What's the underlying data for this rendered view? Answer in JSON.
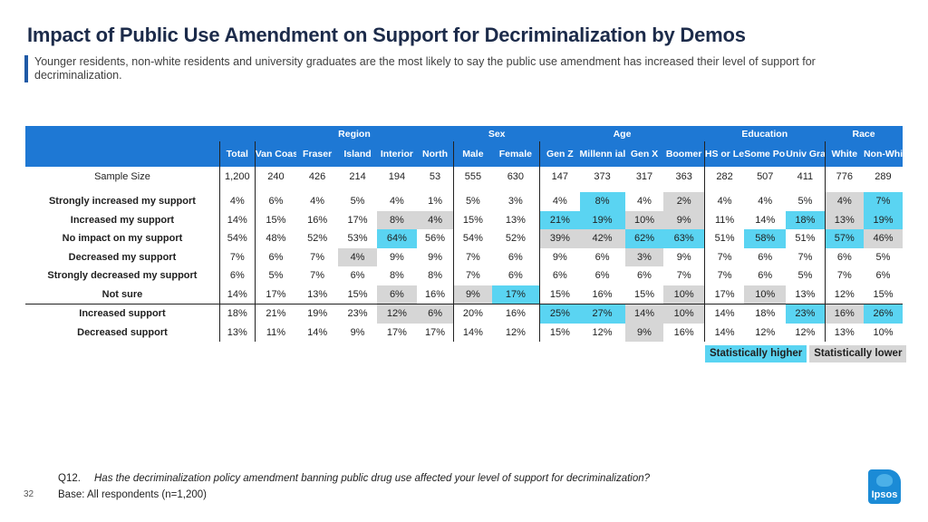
{
  "title": "Impact of Public Use Amendment on Support for Decriminalization by Demos",
  "subtitle": "Younger residents, non-white residents and university graduates are the most likely to say the public use amendment has increased their level of support for decriminalization.",
  "groups": {
    "region": "Region",
    "sex": "Sex",
    "age": "Age",
    "education": "Education",
    "race": "Race"
  },
  "columns": [
    "Total",
    "Van Coastal",
    "Fraser",
    "Island",
    "Interior",
    "North",
    "Male",
    "Female",
    "Gen Z",
    "Millenn ial",
    "Gen X",
    "Boomer",
    "HS or Less",
    "Some PostSec",
    "Univ Grad",
    "White",
    "Non-White"
  ],
  "sample": {
    "label": "Sample Size",
    "values": [
      "1,200",
      "240",
      "426",
      "214",
      "194",
      "53",
      "555",
      "630",
      "147",
      "373",
      "317",
      "363",
      "282",
      "507",
      "411",
      "776",
      "289"
    ]
  },
  "rows": [
    {
      "label": "Strongly increased my support",
      "values": [
        "4%",
        "6%",
        "4%",
        "5%",
        "4%",
        "1%",
        "5%",
        "3%",
        "4%",
        "8%",
        "4%",
        "2%",
        "4%",
        "4%",
        "5%",
        "4%",
        "7%"
      ],
      "sig": [
        "",
        "",
        "",
        "",
        "",
        "",
        "",
        "",
        "",
        "h",
        "",
        "l",
        "",
        "",
        "",
        "l",
        "h"
      ]
    },
    {
      "label": "Increased my support",
      "values": [
        "14%",
        "15%",
        "16%",
        "17%",
        "8%",
        "4%",
        "15%",
        "13%",
        "21%",
        "19%",
        "10%",
        "9%",
        "11%",
        "14%",
        "18%",
        "13%",
        "19%"
      ],
      "sig": [
        "",
        "",
        "",
        "",
        "l",
        "l",
        "",
        "",
        "h",
        "h",
        "l",
        "l",
        "",
        "",
        "h",
        "l",
        "h"
      ]
    },
    {
      "label": "No impact on my support",
      "values": [
        "54%",
        "48%",
        "52%",
        "53%",
        "64%",
        "56%",
        "54%",
        "52%",
        "39%",
        "42%",
        "62%",
        "63%",
        "51%",
        "58%",
        "51%",
        "57%",
        "46%"
      ],
      "sig": [
        "",
        "",
        "",
        "",
        "h",
        "",
        "",
        "",
        "l",
        "l",
        "h",
        "h",
        "",
        "h",
        "",
        "h",
        "l"
      ]
    },
    {
      "label": "Decreased my support",
      "values": [
        "7%",
        "6%",
        "7%",
        "4%",
        "9%",
        "9%",
        "7%",
        "6%",
        "9%",
        "6%",
        "3%",
        "9%",
        "7%",
        "6%",
        "7%",
        "6%",
        "5%"
      ],
      "sig": [
        "",
        "",
        "",
        "l",
        "",
        "",
        "",
        "",
        "",
        "",
        "l",
        "",
        "",
        "",
        "",
        "",
        ""
      ]
    },
    {
      "label": "Strongly decreased my support",
      "values": [
        "6%",
        "5%",
        "7%",
        "6%",
        "8%",
        "8%",
        "7%",
        "6%",
        "6%",
        "6%",
        "6%",
        "7%",
        "7%",
        "6%",
        "5%",
        "7%",
        "6%"
      ],
      "sig": [
        "",
        "",
        "",
        "",
        "",
        "",
        "",
        "",
        "",
        "",
        "",
        "",
        "",
        "",
        "",
        "",
        ""
      ]
    },
    {
      "label": "Not sure",
      "values": [
        "14%",
        "17%",
        "13%",
        "15%",
        "6%",
        "16%",
        "9%",
        "17%",
        "15%",
        "16%",
        "15%",
        "10%",
        "17%",
        "10%",
        "13%",
        "12%",
        "15%"
      ],
      "sig": [
        "",
        "",
        "",
        "",
        "l",
        "",
        "l",
        "h",
        "",
        "",
        "",
        "l",
        "",
        "l",
        "",
        "",
        ""
      ]
    },
    {
      "label": "Increased support",
      "values": [
        "18%",
        "21%",
        "19%",
        "23%",
        "12%",
        "6%",
        "20%",
        "16%",
        "25%",
        "27%",
        "14%",
        "10%",
        "14%",
        "18%",
        "23%",
        "16%",
        "26%"
      ],
      "sig": [
        "",
        "",
        "",
        "",
        "l",
        "l",
        "",
        "",
        "h",
        "h",
        "l",
        "l",
        "",
        "",
        "h",
        "l",
        "h"
      ]
    },
    {
      "label": "Decreased support",
      "values": [
        "13%",
        "11%",
        "14%",
        "9%",
        "17%",
        "17%",
        "14%",
        "12%",
        "15%",
        "12%",
        "9%",
        "16%",
        "14%",
        "12%",
        "12%",
        "13%",
        "10%"
      ],
      "sig": [
        "",
        "",
        "",
        "",
        "",
        "",
        "",
        "",
        "",
        "",
        "l",
        "",
        "",
        "",
        "",
        "",
        ""
      ]
    }
  ],
  "legend": {
    "higher": "Statistically higher",
    "lower": "Statistically lower"
  },
  "footer": {
    "question_id": "Q12.",
    "question_text": "Has the decriminalization policy amendment banning public drug use affected your level of support for decriminalization?",
    "base": "Base: All respondents (n=1,200)",
    "page_number": "32",
    "logo_text": "Ipsos"
  },
  "colors": {
    "header_blue": "#1e78d4",
    "sig_higher": "#5ad4f2",
    "sig_lower": "#d6d6d6",
    "title_navy": "#1c2b4a"
  }
}
